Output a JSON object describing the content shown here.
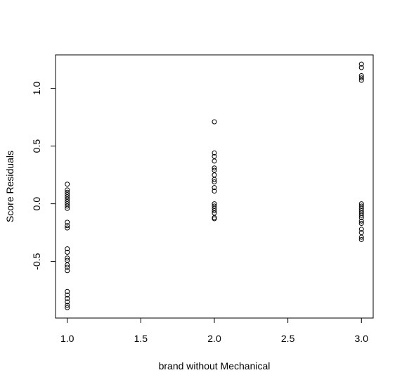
{
  "chart_data": {
    "type": "scatter",
    "title": "",
    "xlabel": "brand without Mechanical",
    "ylabel": "Score Residuals",
    "xlim": [
      0.92,
      3.08
    ],
    "ylim": [
      -0.99,
      1.29
    ],
    "xticks": [
      1.0,
      1.5,
      2.0,
      2.5,
      3.0
    ],
    "xtick_labels": [
      "1.0",
      "1.5",
      "2.0",
      "2.5",
      "3.0"
    ],
    "yticks": [
      -0.5,
      0.0,
      0.5,
      1.0
    ],
    "ytick_labels": [
      "-0.5",
      "0.0",
      "0.5",
      "1.0"
    ],
    "grid": false,
    "legend": "none",
    "marker": "open-circle",
    "color": "#000000",
    "points": [
      {
        "x": 1,
        "y": 0.17
      },
      {
        "x": 1,
        "y": 0.12
      },
      {
        "x": 1,
        "y": 0.1
      },
      {
        "x": 1,
        "y": 0.08
      },
      {
        "x": 1,
        "y": 0.06
      },
      {
        "x": 1,
        "y": 0.04
      },
      {
        "x": 1,
        "y": 0.02
      },
      {
        "x": 1,
        "y": 0.0
      },
      {
        "x": 1,
        "y": -0.02
      },
      {
        "x": 1,
        "y": -0.04
      },
      {
        "x": 1,
        "y": -0.16
      },
      {
        "x": 1,
        "y": -0.19
      },
      {
        "x": 1,
        "y": -0.21
      },
      {
        "x": 1,
        "y": -0.39
      },
      {
        "x": 1,
        "y": -0.42
      },
      {
        "x": 1,
        "y": -0.47
      },
      {
        "x": 1,
        "y": -0.49
      },
      {
        "x": 1,
        "y": -0.53
      },
      {
        "x": 1,
        "y": -0.55
      },
      {
        "x": 1,
        "y": -0.58
      },
      {
        "x": 1,
        "y": -0.76
      },
      {
        "x": 1,
        "y": -0.79
      },
      {
        "x": 1,
        "y": -0.82
      },
      {
        "x": 1,
        "y": -0.85
      },
      {
        "x": 1,
        "y": -0.88
      },
      {
        "x": 1,
        "y": -0.9
      },
      {
        "x": 2,
        "y": 0.71
      },
      {
        "x": 2,
        "y": 0.44
      },
      {
        "x": 2,
        "y": 0.41
      },
      {
        "x": 2,
        "y": 0.37
      },
      {
        "x": 2,
        "y": 0.31
      },
      {
        "x": 2,
        "y": 0.29
      },
      {
        "x": 2,
        "y": 0.25
      },
      {
        "x": 2,
        "y": 0.21
      },
      {
        "x": 2,
        "y": 0.19
      },
      {
        "x": 2,
        "y": 0.14
      },
      {
        "x": 2,
        "y": 0.11
      },
      {
        "x": 2,
        "y": 0.0
      },
      {
        "x": 2,
        "y": -0.02
      },
      {
        "x": 2,
        "y": -0.04
      },
      {
        "x": 2,
        "y": -0.06
      },
      {
        "x": 2,
        "y": -0.08
      },
      {
        "x": 2,
        "y": -0.12
      },
      {
        "x": 2,
        "y": -0.13
      },
      {
        "x": 3,
        "y": 1.21
      },
      {
        "x": 3,
        "y": 1.18
      },
      {
        "x": 3,
        "y": 1.11
      },
      {
        "x": 3,
        "y": 1.09
      },
      {
        "x": 3,
        "y": 1.07
      },
      {
        "x": 3,
        "y": 0.0
      },
      {
        "x": 3,
        "y": -0.02
      },
      {
        "x": 3,
        "y": -0.04
      },
      {
        "x": 3,
        "y": -0.06
      },
      {
        "x": 3,
        "y": -0.08
      },
      {
        "x": 3,
        "y": -0.1
      },
      {
        "x": 3,
        "y": -0.12
      },
      {
        "x": 3,
        "y": -0.15
      },
      {
        "x": 3,
        "y": -0.17
      },
      {
        "x": 3,
        "y": -0.22
      },
      {
        "x": 3,
        "y": -0.25
      },
      {
        "x": 3,
        "y": -0.29
      },
      {
        "x": 3,
        "y": -0.31
      }
    ]
  }
}
